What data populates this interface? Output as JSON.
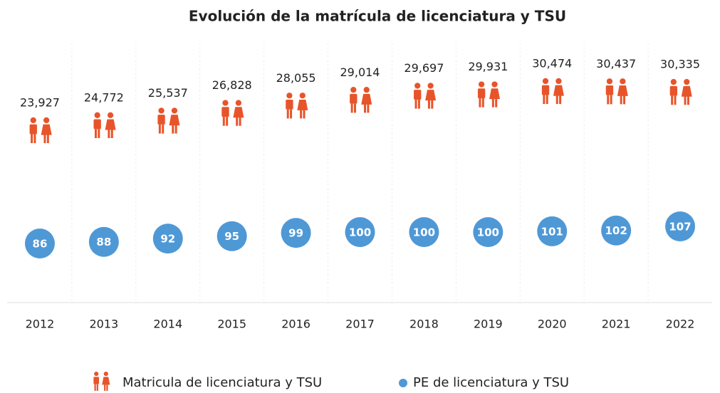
{
  "chart_data": {
    "type": "pictogram",
    "title": "Evolución de la matrícula de licenciatura y TSU",
    "categories": [
      "2012",
      "2013",
      "2014",
      "2015",
      "2016",
      "2017",
      "2018",
      "2019",
      "2020",
      "2021",
      "2022"
    ],
    "series": [
      {
        "name": "Matricula de licenciatura y TSU",
        "color": "#e8542a",
        "values": [
          23927,
          24772,
          25537,
          26828,
          28055,
          29014,
          29697,
          29931,
          30474,
          30437,
          30335
        ],
        "value_labels": [
          "23,927",
          "24,772",
          "25,537",
          "26,828",
          "28,055",
          "29,014",
          "29,697",
          "29,931",
          "30,474",
          "30,437",
          "30,335"
        ]
      },
      {
        "name": "PE de licenciatura y TSU",
        "color": "#4f98d6",
        "values": [
          86,
          88,
          92,
          95,
          99,
          100,
          100,
          100,
          101,
          102,
          107
        ]
      }
    ]
  }
}
